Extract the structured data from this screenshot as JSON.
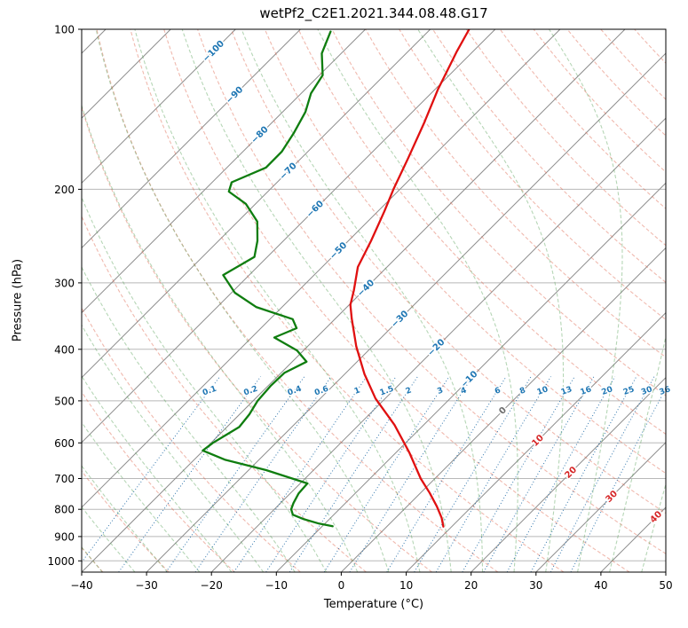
{
  "title": "wetPf2_C2E1.2021.344.08.48.G17",
  "axes": {
    "xlabel": "Temperature (°C)",
    "ylabel": "Pressure (hPa)",
    "x_ticks": [
      -40,
      -30,
      -20,
      -10,
      0,
      10,
      20,
      30,
      40,
      50
    ],
    "y_ticks": [
      100,
      200,
      300,
      400,
      500,
      600,
      700,
      800,
      900,
      1000
    ],
    "xlim": [
      -40,
      50
    ],
    "p_top": 100,
    "p_bottom": 1050
  },
  "chart_data": {
    "type": "line",
    "subtype": "skewT-logP",
    "temperature_profile": {
      "name": "Temperature",
      "color": "#e01010",
      "pressure_hpa": [
        100,
        110,
        130,
        150,
        175,
        200,
        220,
        250,
        280,
        310,
        330,
        350,
        395,
        445,
        495,
        555,
        625,
        700,
        745,
        790,
        830,
        862
      ],
      "temp_c": [
        -64,
        -62.5,
        -59.5,
        -56.5,
        -53.5,
        -51,
        -49,
        -46.5,
        -44.5,
        -41.5,
        -39.8,
        -37.5,
        -32.5,
        -27,
        -21.5,
        -14.5,
        -8,
        -2.2,
        1.4,
        4.6,
        7.1,
        8.7
      ]
    },
    "dewpoint_profile": {
      "name": "Dew point",
      "color": "#0f7d0f",
      "pressure_hpa": [
        101,
        111,
        122,
        132,
        143,
        157,
        170,
        182,
        194,
        202,
        213,
        230,
        250,
        268,
        290,
        313,
        333,
        351,
        365,
        380,
        402,
        422,
        443,
        469,
        500,
        530,
        560,
        600,
        620,
        645,
        675,
        715,
        747,
        779,
        800,
        819,
        835,
        851,
        861
      ],
      "temp_c": [
        -85,
        -83,
        -79.5,
        -78.5,
        -76.5,
        -75,
        -74,
        -74,
        -77,
        -76,
        -71.5,
        -67,
        -64,
        -62,
        -64,
        -59.5,
        -54,
        -46.5,
        -44.5,
        -46.5,
        -41,
        -37.8,
        -39.5,
        -39.6,
        -39.3,
        -38.5,
        -38.1,
        -39.7,
        -40.1,
        -35.3,
        -27.3,
        -18.9,
        -18.7,
        -18,
        -17.4,
        -16.3,
        -13.9,
        -10.9,
        -8.4
      ]
    },
    "isotherm_labels": [
      {
        "value": -100,
        "color": "#1f77b4"
      },
      {
        "value": -90,
        "color": "#1f77b4"
      },
      {
        "value": -80,
        "color": "#1f77b4"
      },
      {
        "value": -70,
        "color": "#1f77b4"
      },
      {
        "value": -60,
        "color": "#1f77b4"
      },
      {
        "value": -50,
        "color": "#1f77b4"
      },
      {
        "value": -40,
        "color": "#1f77b4"
      },
      {
        "value": -30,
        "color": "#1f77b4"
      },
      {
        "value": -20,
        "color": "#1f77b4"
      },
      {
        "value": -10,
        "color": "#1f77b4"
      },
      {
        "value": 0,
        "color": "#6e6e6e"
      },
      {
        "value": 10,
        "color": "#d62728"
      },
      {
        "value": 20,
        "color": "#d62728"
      },
      {
        "value": 30,
        "color": "#d62728"
      },
      {
        "value": 40,
        "color": "#d62728"
      }
    ],
    "mixing_ratio_labels": [
      0.1,
      0.2,
      0.4,
      0.6,
      1,
      1.5,
      2,
      3,
      4,
      6,
      8,
      10,
      13,
      16,
      20,
      25,
      30,
      36
    ],
    "mixing_ratio_label_color": "#1f77b4",
    "mixing_ratio_top_pressure": 450,
    "isotherms": {
      "start": -160,
      "end": 50,
      "step": 10,
      "color": "#8c8c8c"
    },
    "dry_adiabats": {
      "start": -60,
      "end": 200,
      "step": 10,
      "color": "rgba(222,100,75,0.45)"
    },
    "moist_adiabats": {
      "start": -45,
      "end": 50,
      "step": 5,
      "color": "rgba(80,158,80,0.42)"
    },
    "mixing_ratio_line_color": "rgba(30,105,165,0.9)",
    "grid_color": "#b8b8b8",
    "spine_color": "#000000"
  }
}
